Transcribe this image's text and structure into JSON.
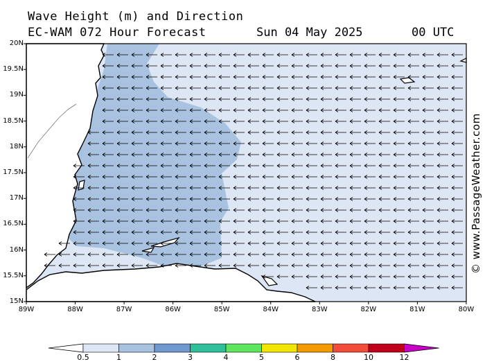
{
  "header": {
    "title_line1": "Wave Height (m) and Direction",
    "title_line2": "EC-WAM 072 Hour Forecast",
    "date": "Sun 04 May 2025",
    "time": "00 UTC"
  },
  "credit": "© www.PassageWeather.com",
  "axes": {
    "lat_labels": [
      "20N",
      "19.5N",
      "19N",
      "18.5N",
      "18N",
      "17.5N",
      "17N",
      "16.5N",
      "16N",
      "15.5N",
      "15N"
    ],
    "lon_labels": [
      "89W",
      "88W",
      "87W",
      "86W",
      "85W",
      "84W",
      "83W",
      "82W",
      "81W",
      "80W"
    ]
  },
  "colorbar": {
    "labels": [
      "0.5",
      "1",
      "2",
      "3",
      "4",
      "5",
      "6",
      "8",
      "10",
      "12"
    ],
    "colors": [
      "#dde6f4",
      "#a8c2e0",
      "#6f98d0",
      "#2fbf9a",
      "#5de65d",
      "#f2e600",
      "#f29a00",
      "#f24d3a",
      "#c0001a",
      "#c800c8"
    ]
  },
  "legend_colors": {
    "low": "#dde6f4",
    "mid": "#a8c2e0",
    "land": "#ffffff",
    "coast": "#000000"
  },
  "wave_direction": "westward"
}
